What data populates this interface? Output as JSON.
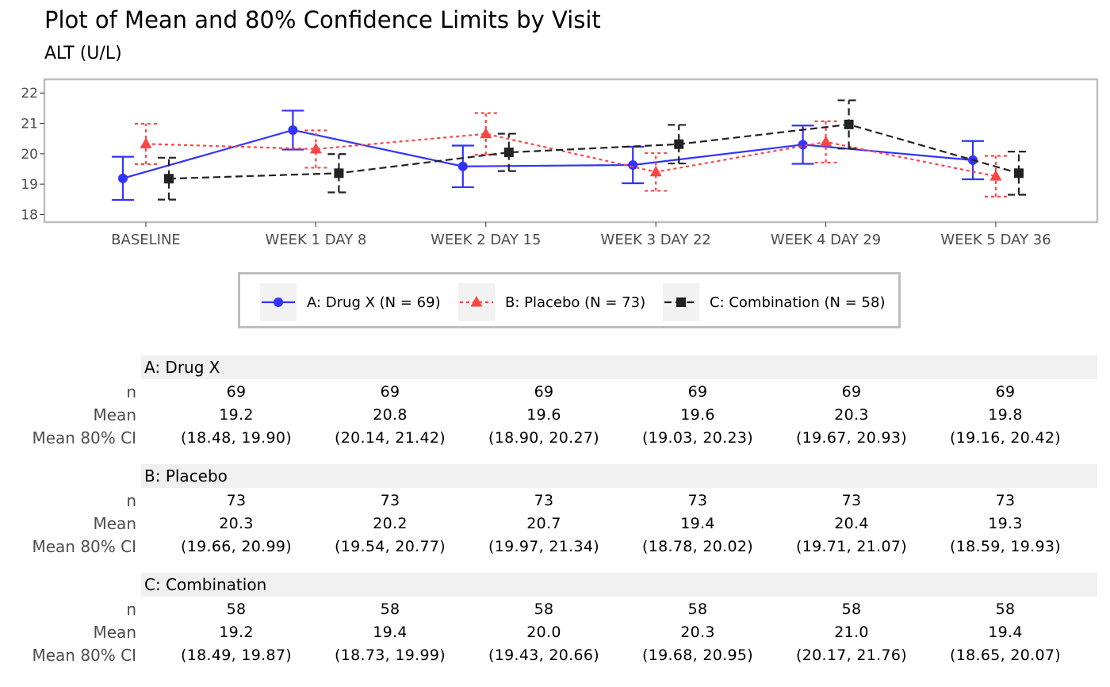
{
  "title": "Plot of Mean and 80% Confidence Limits by Visit",
  "subtitle": "ALT (U/L)",
  "chart_data": {
    "type": "line",
    "categories": [
      "BASELINE",
      "WEEK 1 DAY 8",
      "WEEK 2 DAY 15",
      "WEEK 3 DAY 22",
      "WEEK 4 DAY 29",
      "WEEK 5 DAY 36"
    ],
    "ylim": [
      17.75,
      22.45
    ],
    "yticks": [
      18,
      19,
      20,
      21,
      22
    ],
    "grid": false,
    "legend_position": "bottom",
    "series": [
      {
        "name": "A: Drug X (N = 69)",
        "color": "#3333ff",
        "marker": "circle",
        "line": "solid",
        "values": [
          19.19,
          20.78,
          19.585,
          19.63,
          20.3,
          19.79
        ],
        "ci_lower": [
          18.48,
          20.14,
          18.9,
          19.03,
          19.67,
          19.16
        ],
        "ci_upper": [
          19.9,
          21.42,
          20.27,
          20.23,
          20.93,
          20.42
        ]
      },
      {
        "name": "B: Placebo (N = 73)",
        "color": "#ff4444",
        "marker": "triangle",
        "line": "dotted",
        "values": [
          20.325,
          20.155,
          20.655,
          19.4,
          20.39,
          19.26
        ],
        "ci_lower": [
          19.66,
          19.54,
          19.97,
          18.78,
          19.71,
          18.59
        ],
        "ci_upper": [
          20.99,
          20.77,
          21.34,
          20.02,
          21.07,
          19.93
        ]
      },
      {
        "name": "C: Combination (N = 58)",
        "color": "#222222",
        "marker": "square",
        "line": "dashed",
        "values": [
          19.18,
          19.36,
          20.045,
          20.315,
          20.965,
          19.36
        ],
        "ci_lower": [
          18.49,
          18.73,
          19.43,
          19.68,
          20.17,
          18.65
        ],
        "ci_upper": [
          19.87,
          19.99,
          20.66,
          20.95,
          21.76,
          20.07
        ]
      }
    ]
  },
  "table": {
    "row_labels": [
      "n",
      "Mean",
      "Mean 80% CI"
    ],
    "groups": [
      {
        "header": "A: Drug X",
        "n": [
          "69",
          "69",
          "69",
          "69",
          "69",
          "69"
        ],
        "mean": [
          "19.2",
          "20.8",
          "19.6",
          "19.6",
          "20.3",
          "19.8"
        ],
        "ci": [
          "(18.48, 19.90)",
          "(20.14, 21.42)",
          "(18.90, 20.27)",
          "(19.03, 20.23)",
          "(19.67, 20.93)",
          "(19.16, 20.42)"
        ]
      },
      {
        "header": "B: Placebo",
        "n": [
          "73",
          "73",
          "73",
          "73",
          "73",
          "73"
        ],
        "mean": [
          "20.3",
          "20.2",
          "20.7",
          "19.4",
          "20.4",
          "19.3"
        ],
        "ci": [
          "(19.66, 20.99)",
          "(19.54, 20.77)",
          "(19.97, 21.34)",
          "(18.78, 20.02)",
          "(19.71, 21.07)",
          "(18.59, 19.93)"
        ]
      },
      {
        "header": "C: Combination",
        "n": [
          "58",
          "58",
          "58",
          "58",
          "58",
          "58"
        ],
        "mean": [
          "19.2",
          "19.4",
          "20.0",
          "20.3",
          "21.0",
          "19.4"
        ],
        "ci": [
          "(18.49, 19.87)",
          "(18.73, 19.99)",
          "(19.43, 20.66)",
          "(19.68, 20.95)",
          "(20.17, 21.76)",
          "(18.65, 20.07)"
        ]
      }
    ]
  }
}
